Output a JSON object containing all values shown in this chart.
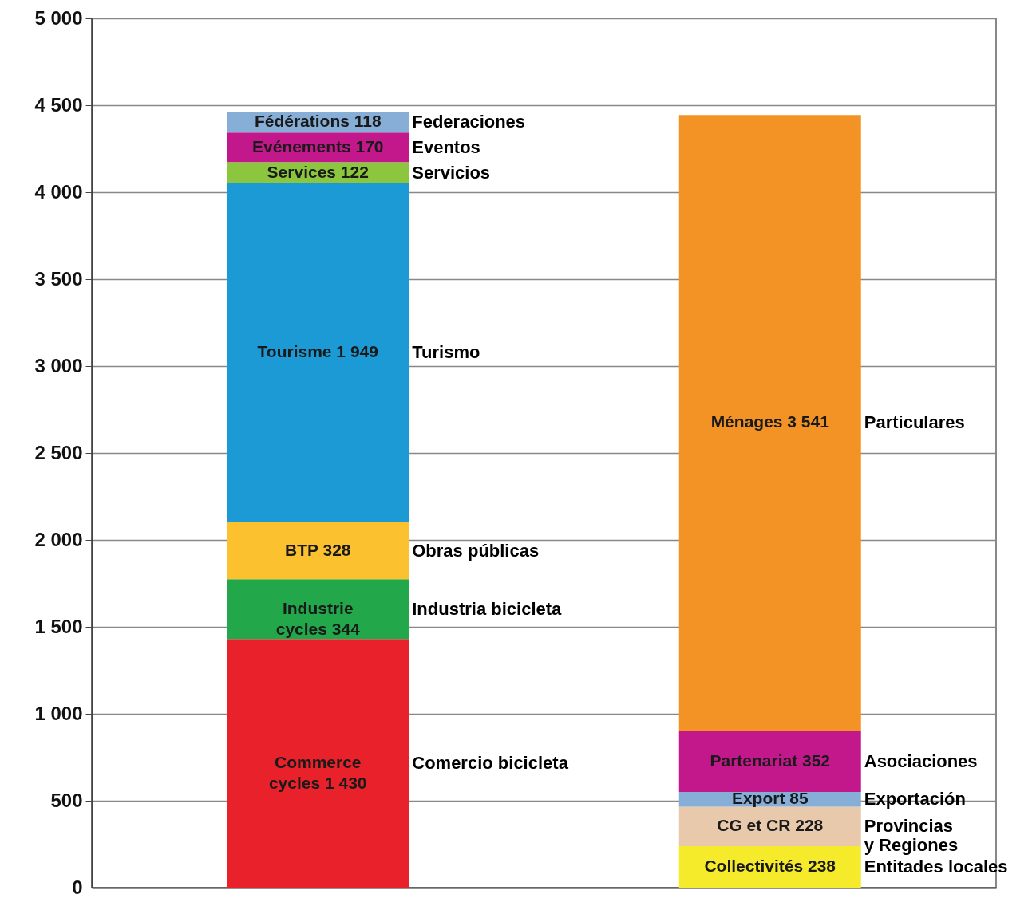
{
  "chart_data": {
    "type": "bar",
    "stacked": true,
    "categories": [
      null,
      null
    ],
    "ylim": [
      0,
      5000
    ],
    "yticks": [
      {
        "value": 0,
        "label": "0"
      },
      {
        "value": 500,
        "label": "500"
      },
      {
        "value": 1000,
        "label": "1 000"
      },
      {
        "value": 1500,
        "label": "1 500"
      },
      {
        "value": 2000,
        "label": "2 000"
      },
      {
        "value": 2500,
        "label": "2 500"
      },
      {
        "value": 3000,
        "label": "3 000"
      },
      {
        "value": 3500,
        "label": "3 500"
      },
      {
        "value": 4000,
        "label": "4 000"
      },
      {
        "value": 4500,
        "label": "4 500"
      },
      {
        "value": 5000,
        "label": "5 000"
      }
    ],
    "grid": "y",
    "tick_labels": "y",
    "series": [
      {
        "name": "Comercio bicicleta",
        "color": "#e8212a",
        "values": [
          1430,
          null
        ],
        "value_labels": [
          "Commerce cycles 1 430",
          null
        ]
      },
      {
        "name": "Entitades locales",
        "color": "#f5eb2a",
        "values": [
          null,
          238
        ],
        "value_labels": [
          null,
          "Collectivités 238"
        ]
      },
      {
        "name": "Industria bicicleta",
        "color": "#22a84a",
        "values": [
          344,
          null
        ],
        "value_labels": [
          "Industrie cycles 344",
          null
        ]
      },
      {
        "name": "Provincias y Regiones",
        "color": "#e8c9ab",
        "values": [
          null,
          228
        ],
        "value_labels": [
          null,
          "CG et CR 228"
        ]
      },
      {
        "name": "Obras públicas",
        "color": "#fbc12e",
        "values": [
          328,
          null
        ],
        "value_labels": [
          "BTP 328",
          null
        ]
      },
      {
        "name": "Exportación",
        "color": "#86aed6",
        "values": [
          null,
          85
        ],
        "value_labels": [
          null,
          "Export 85"
        ]
      },
      {
        "name": "Turismo",
        "color": "#1b9ad6",
        "values": [
          1949,
          null
        ],
        "value_labels": [
          "Tourisme 1 949",
          null
        ]
      },
      {
        "name": "Asociaciones",
        "color": "#c2188b",
        "values": [
          null,
          352
        ],
        "value_labels": [
          null,
          "Partenariat 352"
        ]
      },
      {
        "name": "Servicios",
        "color": "#8cc63f",
        "values": [
          122,
          null
        ],
        "value_labels": [
          "Services 122",
          null
        ]
      },
      {
        "name": "Particulares",
        "color": "#f39325",
        "values": [
          null,
          3541
        ],
        "value_labels": [
          null,
          "Ménages 3 541"
        ]
      },
      {
        "name": "Eventos",
        "color": "#c2188b",
        "values": [
          170,
          null
        ],
        "value_labels": [
          "Evénements 170",
          null
        ]
      },
      {
        "name": "Federaciones",
        "color": "#86aed6",
        "values": [
          118,
          null
        ],
        "value_labels": [
          "Fédérations 118",
          null
        ]
      }
    ]
  }
}
